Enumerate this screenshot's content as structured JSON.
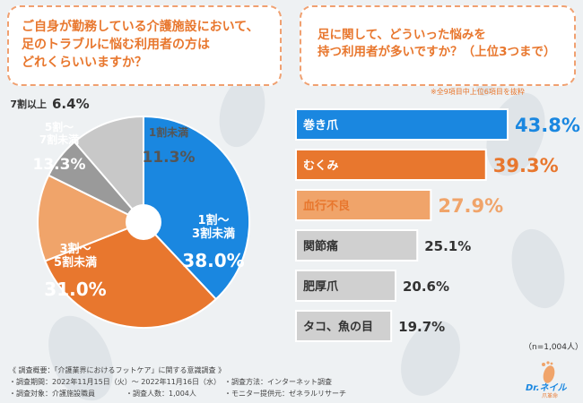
{
  "question1": {
    "lines": [
      "ご自身が勤務している介護施設において、",
      "足のトラブルに悩む利用者の方は",
      "どれくらいいますか？"
    ]
  },
  "question2": {
    "lines": [
      "足に関して、どういった悩みを",
      "持つ利用者が多いですか？（上位3つまで）"
    ]
  },
  "note": "※全9項目中上位6項目を抜粋",
  "sample_size": "（n=1,004人）",
  "footer": {
    "title": "《 調査概要：「介護業界におけるフットケア」に関する意識調査 》",
    "period": "・調査期間：2022年11月15日（火）～ 2022年11月16日（水）",
    "method": "・調査方法：インターネット調査",
    "target": "・調査対象：介護施設職員",
    "count": "・調査人数：1,004人",
    "provider": "・モニター提供元：ゼネラルリサーチ"
  },
  "logo": {
    "brand": "Dr.ネイル",
    "sub": "爪革命"
  },
  "colors": {
    "blue": "#1a87e0",
    "orange_dark": "#e8772e",
    "orange_light": "#f0a46a",
    "gray_dark": "#9a9a9a",
    "gray_light": "#c8c8c8",
    "bar_border": "#ffffff"
  },
  "chart_data": [
    {
      "type": "pie",
      "donut": true,
      "slices": [
        {
          "label_lines": [
            "1割～",
            "3割未満"
          ],
          "value": 38.0,
          "value_label": "38.0%",
          "color": "#1a87e0"
        },
        {
          "label_lines": [
            "3割～",
            "5割未満"
          ],
          "value": 31.0,
          "value_label": "31.0%",
          "color": "#e8772e"
        },
        {
          "label_lines": [
            "5割～",
            "7割未満"
          ],
          "value": 13.3,
          "value_label": "13.3%",
          "color": "#f0a46a"
        },
        {
          "label_lines": [
            "7割以上"
          ],
          "value": 6.4,
          "value_label": "6.4%",
          "color": "#9a9a9a"
        },
        {
          "label_lines": [
            "1割未満"
          ],
          "value": 11.3,
          "value_label": "11.3%",
          "color": "#c8c8c8"
        }
      ]
    },
    {
      "type": "bar",
      "orientation": "horizontal",
      "categories": [
        "巻き爪",
        "むくみ",
        "血行不良",
        "関節痛",
        "肥厚爪",
        "タコ、魚の目"
      ],
      "values": [
        43.8,
        39.3,
        27.9,
        25.1,
        20.6,
        19.7
      ],
      "value_labels": [
        "43.8%",
        "39.3%",
        "27.9%",
        "25.1%",
        "20.6%",
        "19.7%"
      ],
      "colors": [
        "#1a87e0",
        "#e8772e",
        "#f0a46a",
        "#d0d0d0",
        "#d0d0d0",
        "#d0d0d0"
      ],
      "label_colors": [
        "#1a87e0",
        "#e8772e",
        "#f0a46a",
        "#333333",
        "#333333",
        "#333333"
      ]
    }
  ]
}
